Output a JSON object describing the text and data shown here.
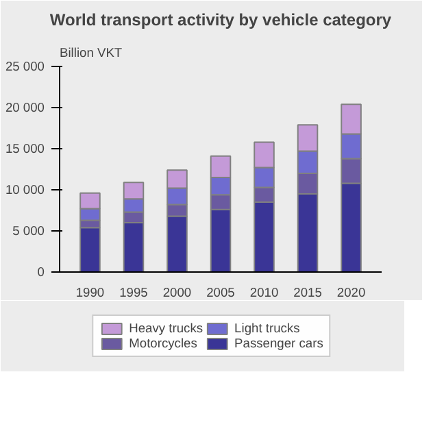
{
  "chart_data": {
    "type": "bar",
    "stacked": true,
    "title": "World transport activity by vehicle category",
    "ylabel": "Billion VKT",
    "categories": [
      "1990",
      "1995",
      "2000",
      "2005",
      "2010",
      "2015",
      "2020"
    ],
    "series": [
      {
        "name": "Passenger cars",
        "color": "#3a3596",
        "values": [
          5400,
          6000,
          6800,
          7600,
          8500,
          9500,
          10800
        ]
      },
      {
        "name": "Motorcycles",
        "color": "#6a5aa0",
        "values": [
          900,
          1300,
          1400,
          1800,
          1800,
          2500,
          3000
        ]
      },
      {
        "name": "Light trucks",
        "color": "#6f6cd0",
        "values": [
          1400,
          1600,
          2000,
          2100,
          2400,
          2700,
          3000
        ]
      },
      {
        "name": "Heavy trucks",
        "color": "#c49ad8",
        "values": [
          1900,
          2000,
          2200,
          2600,
          3100,
          3200,
          3600
        ]
      }
    ],
    "ylim": [
      0,
      25000
    ],
    "yticks": [
      {
        "value": 0,
        "label": "0"
      },
      {
        "value": 5000,
        "label": "5 000"
      },
      {
        "value": 10000,
        "label": "10 000"
      },
      {
        "value": 15000,
        "label": "15 000"
      },
      {
        "value": 20000,
        "label": "20 000"
      },
      {
        "value": 25000,
        "label": "25 000"
      }
    ],
    "grid": false,
    "legend": "bottom"
  }
}
